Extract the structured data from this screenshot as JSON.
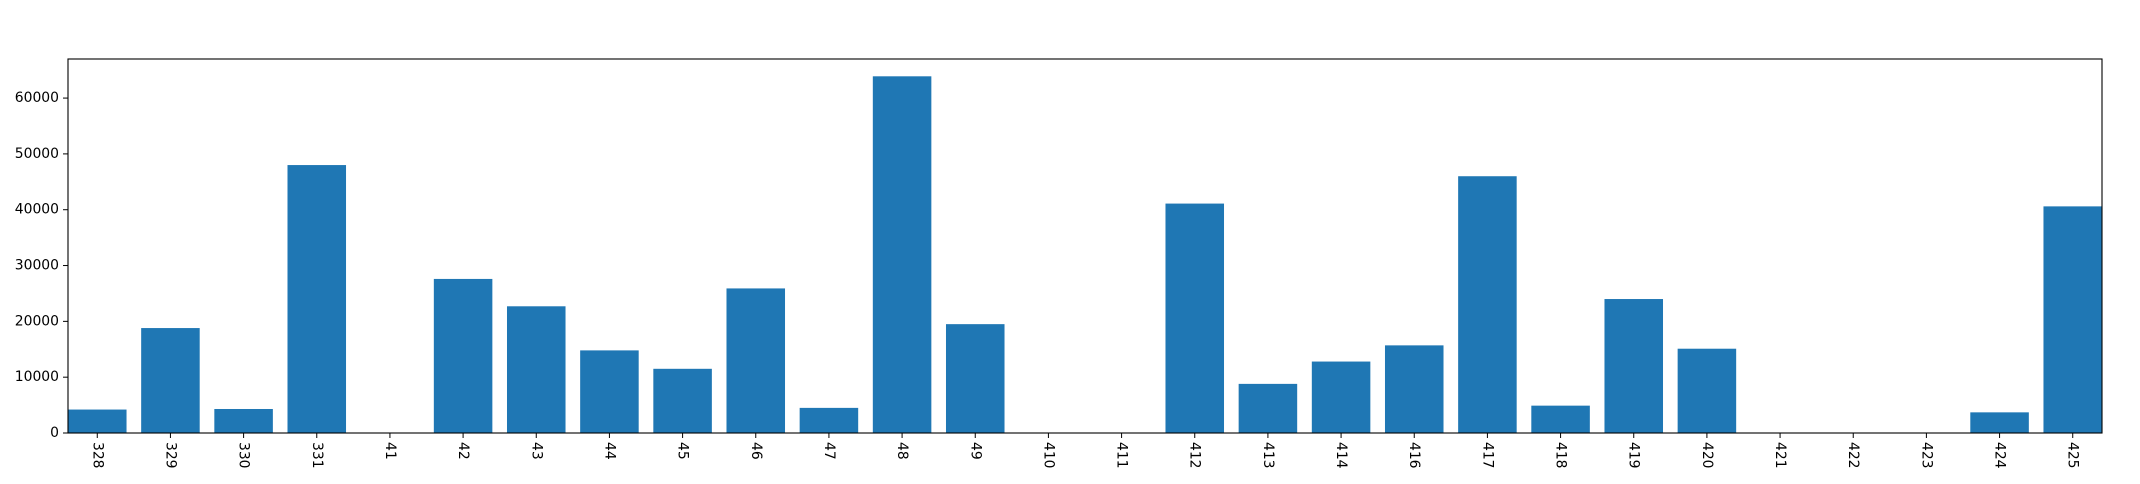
{
  "chart_data": {
    "type": "bar",
    "categories": [
      "328",
      "329",
      "330",
      "331",
      "41",
      "42",
      "43",
      "44",
      "45",
      "46",
      "47",
      "48",
      "49",
      "410",
      "411",
      "412",
      "413",
      "414",
      "416",
      "417",
      "418",
      "419",
      "420",
      "421",
      "422",
      "423",
      "424",
      "425"
    ],
    "values": [
      4200,
      18800,
      4300,
      48000,
      0,
      27600,
      22700,
      14800,
      11500,
      25900,
      4500,
      63900,
      19500,
      0,
      0,
      41100,
      8800,
      12800,
      15700,
      46000,
      4900,
      24000,
      15100,
      0,
      0,
      0,
      3700,
      40600
    ],
    "ylim": [
      0,
      67000
    ],
    "yticks": [
      0,
      10000,
      20000,
      30000,
      40000,
      50000,
      60000
    ],
    "ytick_labels": [
      "0",
      "10000",
      "20000",
      "30000",
      "40000",
      "50000",
      "60000"
    ],
    "xlabel": "",
    "ylabel": "",
    "title": "",
    "grid": false,
    "colors": {
      "bar": "#1f77b4",
      "axis": "#000000"
    }
  }
}
